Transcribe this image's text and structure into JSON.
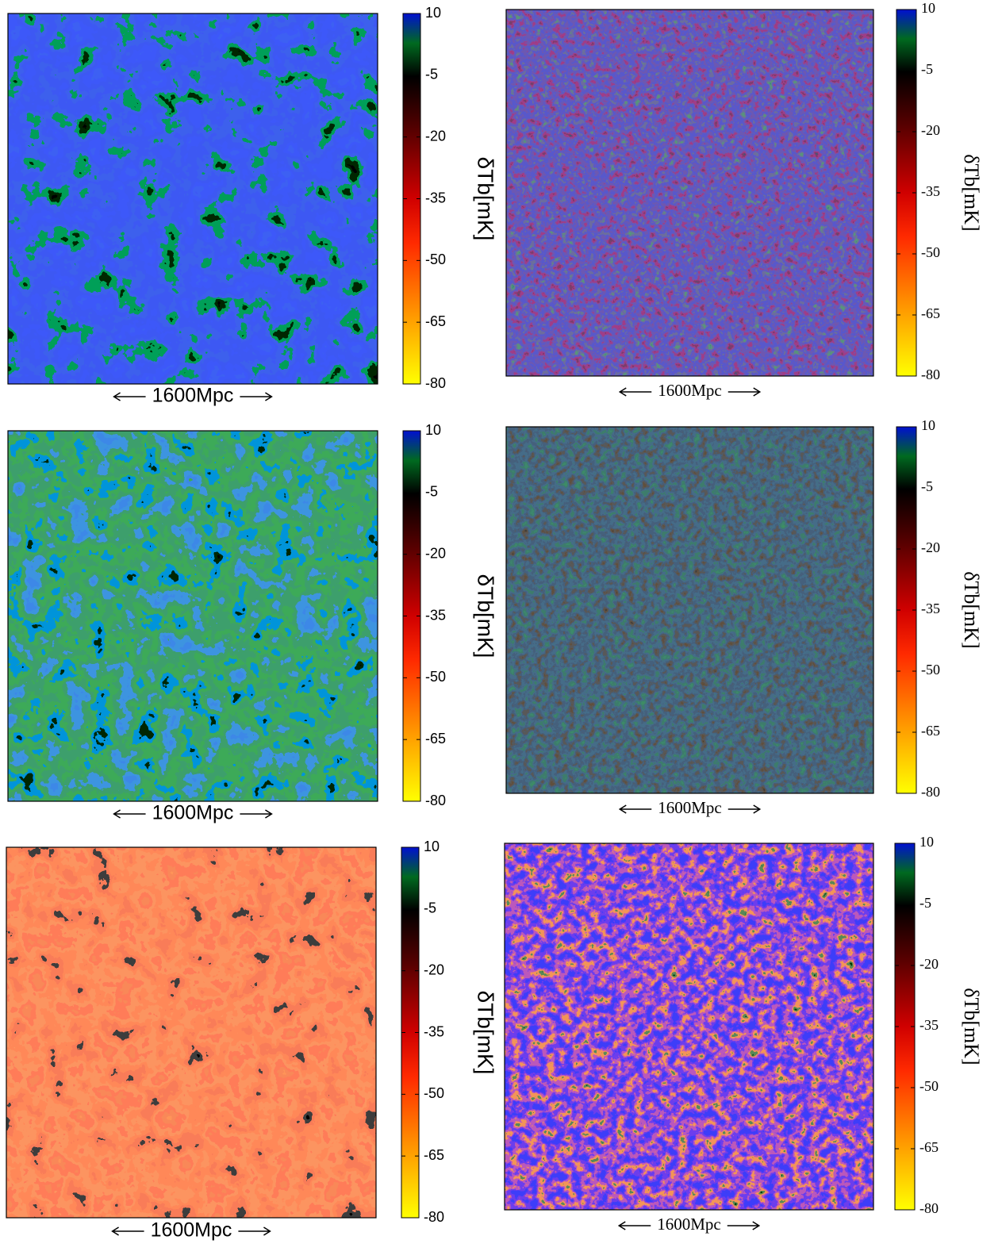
{
  "chart_data": [
    {
      "type": "heatmap",
      "colorbar_label": "δTb[mK]",
      "xlabel": "1600Mpc",
      "clim": [
        -80,
        10
      ],
      "cticks": [
        10,
        -5,
        -20,
        -35,
        -50,
        -65,
        -80
      ]
    },
    {
      "type": "heatmap",
      "colorbar_label": "δTb[mK]",
      "xlabel": "1600Mpc",
      "clim": [
        -80,
        10
      ],
      "cticks": [
        10,
        -5,
        -20,
        -35,
        -50,
        -65,
        -80
      ]
    },
    {
      "type": "heatmap",
      "colorbar_label": "δTb[mK]",
      "xlabel": "1600Mpc",
      "clim": [
        -80,
        10
      ],
      "cticks": [
        10,
        -5,
        -20,
        -35,
        -50,
        -65,
        -80
      ]
    },
    {
      "type": "heatmap",
      "colorbar_label": "δTb[mK]",
      "xlabel": "1600Mpc",
      "clim": [
        -80,
        10
      ],
      "cticks": [
        10,
        -5,
        -20,
        -35,
        -50,
        -65,
        -80
      ]
    },
    {
      "type": "heatmap",
      "colorbar_label": "δTb[mK]",
      "xlabel": "1600Mpc",
      "clim": [
        -80,
        10
      ],
      "cticks": [
        10,
        -5,
        -20,
        -35,
        -50,
        -65,
        -80
      ]
    },
    {
      "type": "heatmap",
      "colorbar_label": "δTb[mK]",
      "xlabel": "1600Mpc",
      "clim": [
        -80,
        10
      ],
      "cticks": [
        10,
        -5,
        -20,
        -35,
        -50,
        -65,
        -80
      ]
    }
  ]
}
